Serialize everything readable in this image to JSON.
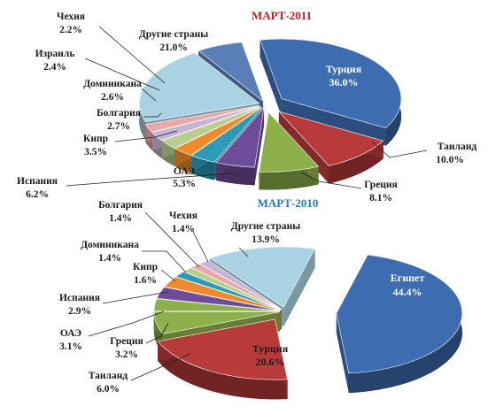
{
  "chart_data": [
    {
      "type": "pie",
      "title": "МАРТ-2011",
      "title_color": "#b22222",
      "categories": [
        "Турция",
        "Таиланд",
        "Греция",
        "ОАЭ",
        "Кипр",
        "Болгария",
        "Доминикана",
        "Израиль",
        "Чехия",
        "Другие страны",
        "Испания"
      ],
      "values": [
        36.0,
        10.0,
        8.1,
        5.3,
        3.5,
        2.7,
        2.6,
        2.4,
        2.2,
        21.0,
        6.2
      ],
      "value_labels": [
        "36.0%",
        "10.0%",
        "8.1%",
        "5.3%",
        "3.5%",
        "2.7%",
        "2.6%",
        "2.4%",
        "2.2%",
        "21.0%",
        "6.2%"
      ],
      "colors": [
        "#3d6cb0",
        "#b83a3a",
        "#8db04a",
        "#6d4c9a",
        "#2c9bb8",
        "#ee8a2a",
        "#b9cd8c",
        "#c6b4d6",
        "#e8a8a8",
        "#a9d3e2",
        "#5a7fb8"
      ],
      "style": "exploded 3d"
    },
    {
      "type": "pie",
      "title": "МАРТ-2010",
      "title_color": "#2e75b6",
      "categories": [
        "Египет",
        "Турция",
        "Таиланд",
        "Греция",
        "ОАЭ",
        "Испания",
        "Кипр",
        "Доминикана",
        "Болгария",
        "Чехия",
        "Другие страны"
      ],
      "values": [
        44.4,
        20.6,
        6.0,
        3.2,
        3.1,
        2.9,
        1.6,
        1.4,
        1.4,
        1.4,
        13.9
      ],
      "value_labels": [
        "44.4%",
        "20.6%",
        "6.0%",
        "3.2%",
        "3.1%",
        "2.9%",
        "1.6%",
        "1.4%",
        "1.4%",
        "1.4%",
        "13.9%"
      ],
      "colors": [
        "#3d6cb0",
        "#b83a3a",
        "#8db04a",
        "#8db04a",
        "#6d4c9a",
        "#ee8a2a",
        "#2c9bb8",
        "#b9cd8c",
        "#e8a8a8",
        "#c6b4d6",
        "#a9d3e2"
      ],
      "style": "exploded 3d"
    }
  ]
}
